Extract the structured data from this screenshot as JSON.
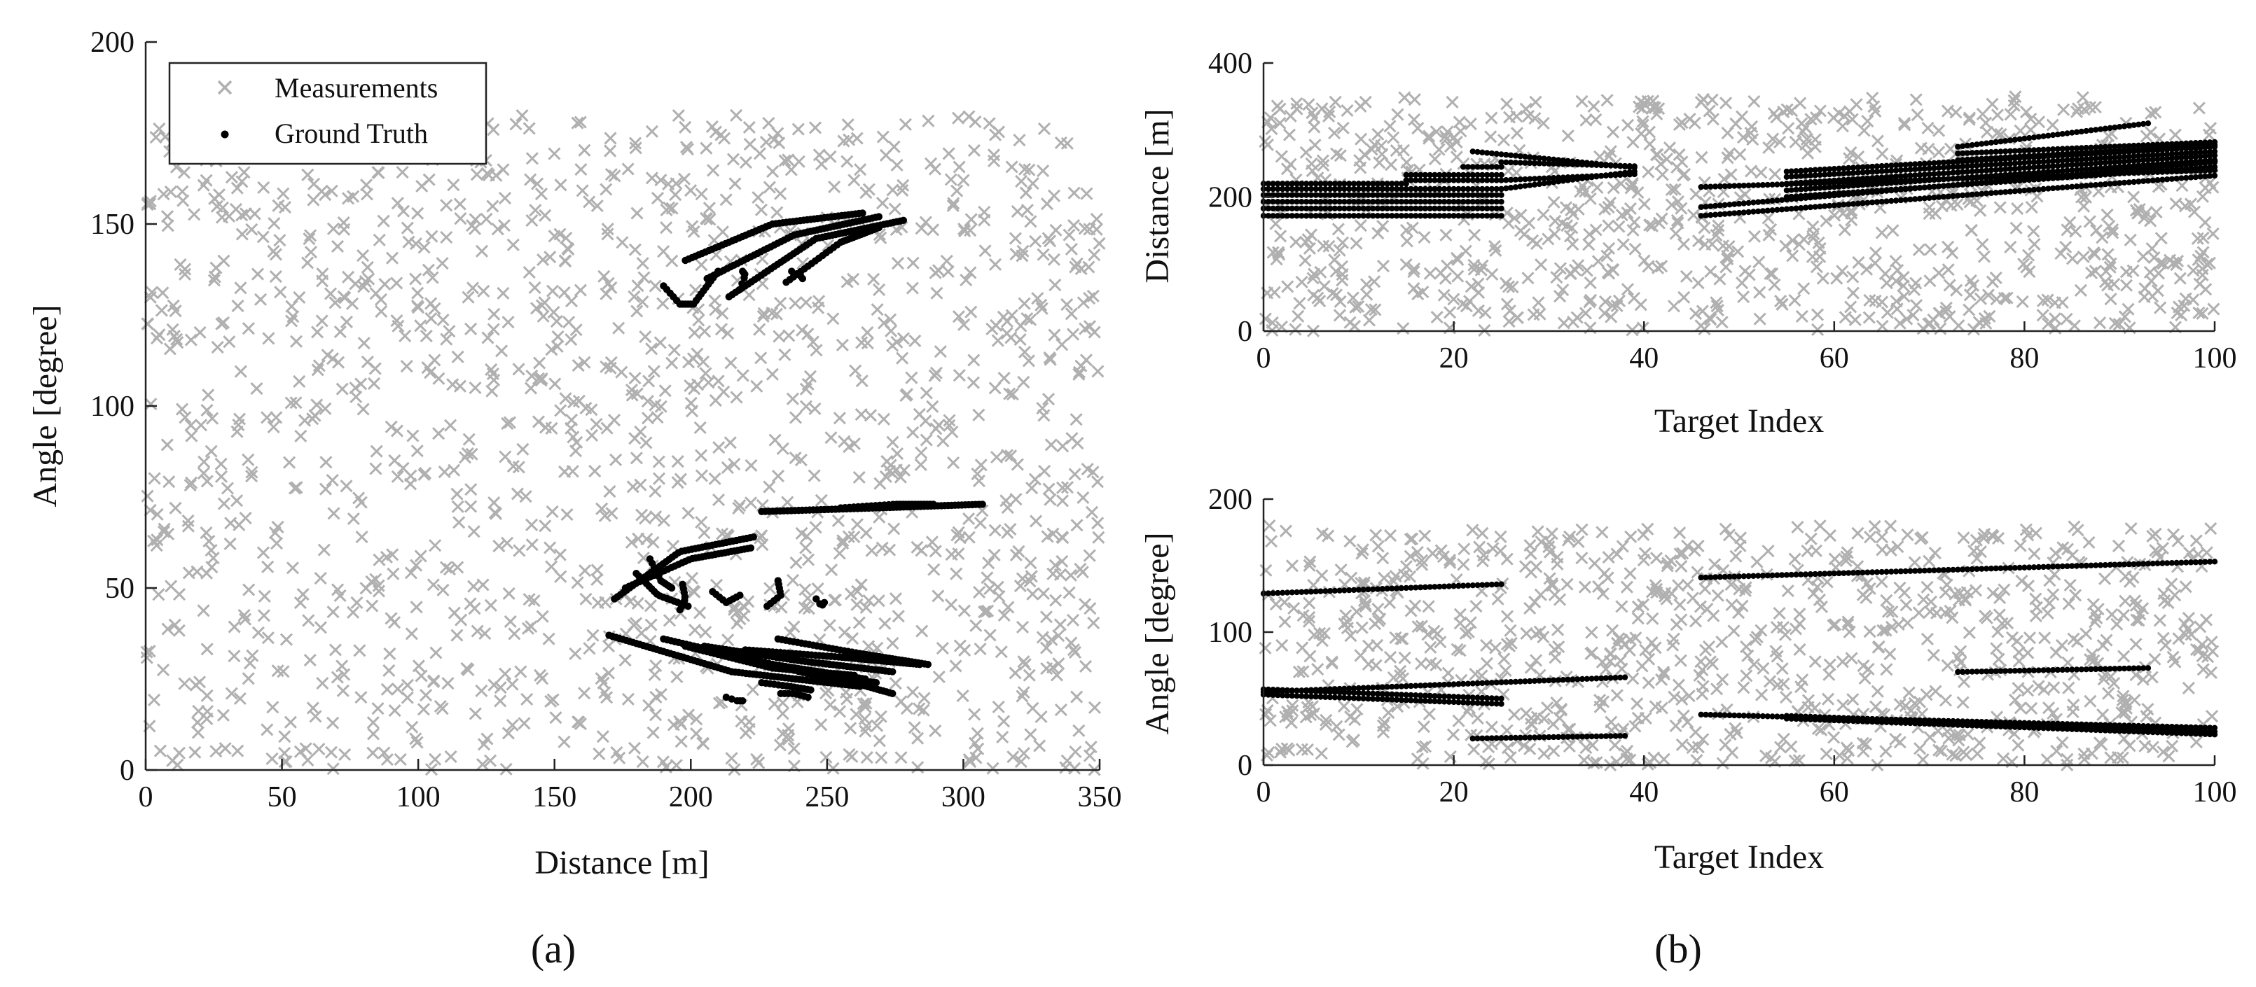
{
  "chart_data": [
    {
      "type": "scatter",
      "panel": "(a)",
      "xlabel": "Distance [m]",
      "ylabel": "Angle [degree]",
      "xlim": [
        0,
        350
      ],
      "ylim": [
        0,
        200
      ],
      "xticks": [
        "0",
        "50",
        "100",
        "150",
        "200",
        "250",
        "300",
        "350"
      ],
      "yticks": [
        "0",
        "50",
        "100",
        "150",
        "200"
      ],
      "legend_placement": "top-left",
      "grid": false,
      "series": [
        {
          "name": "Measurements",
          "marker": "x",
          "color": "#b0b0b0",
          "distribution": "uniform clutter",
          "count": 1500,
          "x_range": [
            0,
            350
          ],
          "y_range": [
            0,
            180
          ]
        },
        {
          "name": "Ground Truth",
          "marker": "dot",
          "color": "#000000",
          "tracks": [
            {
              "x": [
                198,
                230,
                263
              ],
              "y": [
                140,
                150,
                153
              ]
            },
            {
              "x": [
                206,
                238,
                269
              ],
              "y": [
                135,
                147,
                152
              ]
            },
            {
              "x": [
                214,
                246,
                278
              ],
              "y": [
                130,
                146,
                151
              ]
            },
            {
              "x": [
                235,
                255,
                269
              ],
              "y": [
                134,
                145,
                149
              ]
            },
            {
              "x": [
                190,
                196,
                201
              ],
              "y": [
                133,
                128,
                128
              ]
            },
            {
              "x": [
                202,
                206,
                210
              ],
              "y": [
                129,
                133,
                137
              ]
            },
            {
              "x": [
                218,
                220,
                219
              ],
              "y": [
                132,
                136,
                137
              ]
            },
            {
              "x": [
                237,
                240,
                241
              ],
              "y": [
                137,
                136,
                135
              ]
            },
            {
              "x": [
                226,
                268,
                307
              ],
              "y": [
                71,
                72,
                73
              ]
            },
            {
              "x": [
                255,
                275,
                289
              ],
              "y": [
                72,
                73,
                73
              ]
            },
            {
              "x": [
                172,
                196,
                223
              ],
              "y": [
                47,
                60,
                64
              ]
            },
            {
              "x": [
                176,
                200,
                222
              ],
              "y": [
                50,
                58,
                61
              ]
            },
            {
              "x": [
                180,
                188,
                199
              ],
              "y": [
                54,
                48,
                45
              ]
            },
            {
              "x": [
                185,
                189,
                193
              ],
              "y": [
                58,
                52,
                50
              ]
            },
            {
              "x": [
                196,
                198,
                197
              ],
              "y": [
                44,
                47,
                51
              ]
            },
            {
              "x": [
                208,
                213,
                218
              ],
              "y": [
                49,
                46,
                48
              ]
            },
            {
              "x": [
                232,
                233,
                228
              ],
              "y": [
                52,
                48,
                45
              ]
            },
            {
              "x": [
                246,
                248,
                249
              ],
              "y": [
                47,
                45,
                46
              ]
            },
            {
              "x": [
                170,
                215,
                262
              ],
              "y": [
                37,
                27,
                23
              ]
            },
            {
              "x": [
                190,
                230,
                264
              ],
              "y": [
                36,
                29,
                25
              ]
            },
            {
              "x": [
                205,
                240,
                274
              ],
              "y": [
                34,
                30,
                27
              ]
            },
            {
              "x": [
                220,
                255,
                284
              ],
              "y": [
                33,
                31,
                29
              ]
            },
            {
              "x": [
                232,
                262,
                287
              ],
              "y": [
                36,
                32,
                29
              ]
            },
            {
              "x": [
                210,
                245,
                268
              ],
              "y": [
                33,
                26,
                24
              ]
            },
            {
              "x": [
                198,
                230,
                260
              ],
              "y": [
                34,
                28,
                26
              ]
            },
            {
              "x": [
                230,
                255,
                274
              ],
              "y": [
                29,
                25,
                21
              ]
            },
            {
              "x": [
                226,
                236,
                244
              ],
              "y": [
                24,
                23,
                22
              ]
            },
            {
              "x": [
                213,
                217,
                219
              ],
              "y": [
                20,
                19,
                19
              ]
            },
            {
              "x": [
                233,
                238,
                243
              ],
              "y": [
                21,
                21,
                20
              ]
            }
          ]
        }
      ]
    },
    {
      "type": "scatter",
      "panel": "(b)",
      "subplot": "top",
      "xlabel": "Target Index",
      "ylabel": "Distance [m]",
      "xlim": [
        0,
        100
      ],
      "ylim": [
        0,
        400
      ],
      "xticks": [
        "0",
        "20",
        "40",
        "60",
        "80",
        "100"
      ],
      "yticks": [
        "0",
        "200",
        "400"
      ],
      "grid": false,
      "series": [
        {
          "name": "Measurements",
          "marker": "x",
          "color": "#b0b0b0",
          "distribution": "uniform clutter",
          "count": 900,
          "x_range": [
            0,
            100
          ],
          "y_range": [
            0,
            350
          ]
        },
        {
          "name": "Ground Truth",
          "marker": "dot",
          "color": "#000000",
          "lines": [
            {
              "x": [
                0,
                25
              ],
              "y": [
                172,
                172
              ]
            },
            {
              "x": [
                0,
                25
              ],
              "y": [
                183,
                183
              ]
            },
            {
              "x": [
                0,
                25
              ],
              "y": [
                193,
                193
              ]
            },
            {
              "x": [
                0,
                25
              ],
              "y": [
                203,
                203
              ]
            },
            {
              "x": [
                0,
                25
              ],
              "y": [
                212,
                212
              ]
            },
            {
              "x": [
                0,
                15
              ],
              "y": [
                220,
                220
              ]
            },
            {
              "x": [
                15,
                25
              ],
              "y": [
                225,
                225
              ]
            },
            {
              "x": [
                15,
                25
              ],
              "y": [
                233,
                233
              ]
            },
            {
              "x": [
                21,
                25
              ],
              "y": [
                245,
                245
              ]
            },
            {
              "x": [
                22,
                39
              ],
              "y": [
                268,
                244
              ]
            },
            {
              "x": [
                25,
                39
              ],
              "y": [
                212,
                238
              ]
            },
            {
              "x": [
                25,
                39
              ],
              "y": [
                225,
                234
              ]
            },
            {
              "x": [
                25,
                39
              ],
              "y": [
                252,
                246
              ]
            },
            {
              "x": [
                46,
                100
              ],
              "y": [
                172,
                232
              ]
            },
            {
              "x": [
                46,
                100
              ],
              "y": [
                185,
                252
              ]
            },
            {
              "x": [
                46,
                100
              ],
              "y": [
                215,
                240
              ]
            },
            {
              "x": [
                55,
                100
              ],
              "y": [
                200,
                245
              ]
            },
            {
              "x": [
                55,
                100
              ],
              "y": [
                210,
                255
              ]
            },
            {
              "x": [
                55,
                100
              ],
              "y": [
                220,
                262
              ]
            },
            {
              "x": [
                55,
                100
              ],
              "y": [
                230,
                268
              ]
            },
            {
              "x": [
                55,
                100
              ],
              "y": [
                238,
                275
              ]
            },
            {
              "x": [
                73,
                93
              ],
              "y": [
                275,
                310
              ]
            },
            {
              "x": [
                73,
                100
              ],
              "y": [
                265,
                282
              ]
            },
            {
              "x": [
                73,
                100
              ],
              "y": [
                255,
                278
              ]
            }
          ]
        }
      ]
    },
    {
      "type": "scatter",
      "panel": "(b)",
      "subplot": "bottom",
      "xlabel": "Target Index",
      "ylabel": "Angle [degree]",
      "xlim": [
        0,
        100
      ],
      "ylim": [
        0,
        200
      ],
      "xticks": [
        "0",
        "20",
        "40",
        "60",
        "80",
        "100"
      ],
      "yticks": [
        "0",
        "100",
        "200"
      ],
      "grid": false,
      "series": [
        {
          "name": "Measurements",
          "marker": "x",
          "color": "#b0b0b0",
          "distribution": "uniform clutter",
          "count": 900,
          "x_range": [
            0,
            100
          ],
          "y_range": [
            0,
            180
          ]
        },
        {
          "name": "Ground Truth",
          "marker": "dot",
          "color": "#000000",
          "lines": [
            {
              "x": [
                0,
                25
              ],
              "y": [
                129,
                136
              ]
            },
            {
              "x": [
                0,
                38
              ],
              "y": [
                55,
                66
              ]
            },
            {
              "x": [
                0,
                25
              ],
              "y": [
                53,
                46
              ]
            },
            {
              "x": [
                0,
                25
              ],
              "y": [
                57,
                50
              ]
            },
            {
              "x": [
                22,
                38
              ],
              "y": [
                20,
                22
              ]
            },
            {
              "x": [
                46,
                100
              ],
              "y": [
                141,
                153
              ]
            },
            {
              "x": [
                73,
                93
              ],
              "y": [
                70,
                73
              ]
            },
            {
              "x": [
                46,
                100
              ],
              "y": [
                38,
                28
              ]
            },
            {
              "x": [
                55,
                100
              ],
              "y": [
                37,
                25
              ]
            },
            {
              "x": [
                55,
                100
              ],
              "y": [
                35,
                23
              ]
            }
          ]
        }
      ]
    }
  ],
  "legend": {
    "measurements_label": "Measurements",
    "ground_truth_label": "Ground Truth"
  },
  "panels": {
    "a_label": "(a)",
    "b_label": "(b)"
  },
  "colors": {
    "measurements": "#b0b0b0",
    "ground_truth": "#000000",
    "axis": "#222222"
  }
}
